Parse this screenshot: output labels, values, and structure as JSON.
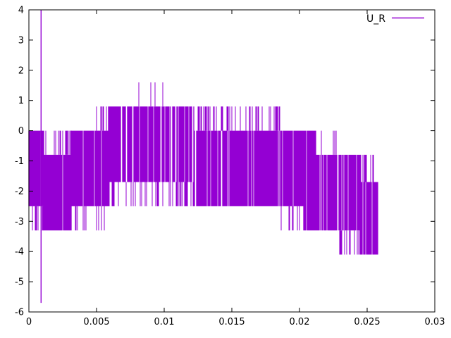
{
  "chart_data": {
    "type": "line",
    "title": "",
    "background_color": "#ffffff",
    "axis_color": "#000000",
    "grid": false,
    "legend": {
      "position": "top-right",
      "entries": [
        {
          "label": "U_R",
          "color": "#9400d3"
        }
      ]
    },
    "x_axis": {
      "range": [
        0,
        0.03
      ],
      "tick_values": [
        0,
        0.005,
        0.01,
        0.015,
        0.02,
        0.025,
        0.03
      ],
      "tick_labels": [
        "0",
        "0.005",
        "0.01",
        "0.015",
        "0.02",
        "0.025",
        "0.03"
      ]
    },
    "y_axis": {
      "range": [
        -6,
        4
      ],
      "tick_values": [
        -6,
        -5,
        -4,
        -3,
        -2,
        -1,
        0,
        1,
        2,
        3,
        4
      ],
      "tick_labels": [
        "-6",
        "-5",
        "-4",
        "-3",
        "-2",
        "-1",
        "0",
        "1",
        "2",
        "3",
        "4"
      ]
    },
    "series": [
      {
        "name": "U_R",
        "color": "#9400d3",
        "signal_levels": [
          1.6,
          0.8,
          0,
          -0.8,
          -1.7,
          -2.5,
          -3.3,
          -4.1
        ],
        "signal_end_x": 0.0258,
        "envelope_segments": [
          {
            "x0": 0.0,
            "x1": 0.0011,
            "hi": 0.0,
            "lo": -2.5,
            "top": null,
            "bot": {
              "level": -3.3,
              "density": 0.35
            },
            "gap": 0.05
          },
          {
            "x0": 0.0011,
            "x1": 0.0019,
            "hi": -0.8,
            "lo": -3.3,
            "top": {
              "level": 0.0,
              "density": 0.08
            },
            "bot": null,
            "gap": 0.05
          },
          {
            "x0": 0.0019,
            "x1": 0.0031,
            "hi": -0.8,
            "lo": -3.3,
            "top": {
              "level": 0.0,
              "density": 0.45
            },
            "bot": null,
            "gap": 0.08
          },
          {
            "x0": 0.0031,
            "x1": 0.005,
            "hi": 0.0,
            "lo": -2.5,
            "top": {
              "level": 0.8,
              "density": 0.05
            },
            "bot": {
              "level": -3.3,
              "density": 0.2
            },
            "gap": 0.1
          },
          {
            "x0": 0.005,
            "x1": 0.0059,
            "hi": 0.0,
            "lo": -2.5,
            "top": {
              "level": 0.8,
              "density": 0.3
            },
            "bot": {
              "level": -3.3,
              "density": 0.12
            },
            "gap": 0.12
          },
          {
            "x0": 0.0059,
            "x1": 0.0103,
            "hi": 0.8,
            "lo": -1.7,
            "top": null,
            "bot": {
              "level": -2.5,
              "density": 0.25
            },
            "gap": 0.09
          },
          {
            "x0": 0.0103,
            "x1": 0.0122,
            "hi": 0.8,
            "lo": -1.7,
            "top": null,
            "bot": {
              "level": -2.5,
              "density": 0.5
            },
            "gap": 0.25
          },
          {
            "x0": 0.0122,
            "x1": 0.0186,
            "hi": 0.0,
            "lo": -2.5,
            "top": {
              "level": 0.8,
              "density": 0.4
            },
            "bot": null,
            "gap": 0.1
          },
          {
            "x0": 0.0186,
            "x1": 0.0203,
            "hi": 0.0,
            "lo": -2.5,
            "top": {
              "level": 0.8,
              "density": 0.15
            },
            "bot": {
              "level": -3.3,
              "density": 0.25
            },
            "gap": 0.1
          },
          {
            "x0": 0.0203,
            "x1": 0.0212,
            "hi": 0.0,
            "lo": -3.3,
            "top": null,
            "bot": null,
            "gap": 0.06
          },
          {
            "x0": 0.0212,
            "x1": 0.0229,
            "hi": -0.8,
            "lo": -3.3,
            "top": {
              "level": 0.0,
              "density": 0.08
            },
            "bot": null,
            "gap": 0.15
          },
          {
            "x0": 0.0229,
            "x1": 0.0245,
            "hi": -0.8,
            "lo": -3.3,
            "top": null,
            "bot": {
              "level": -4.1,
              "density": 0.3
            },
            "gap": 0.12
          },
          {
            "x0": 0.0245,
            "x1": 0.0258,
            "hi": -1.7,
            "lo": -4.1,
            "top": {
              "level": -0.8,
              "density": 0.3
            },
            "bot": null,
            "gap": 0.08
          }
        ],
        "transient_spike": {
          "x": 0.0009,
          "top": 4.0,
          "bottom": -5.7
        },
        "peak_spikes": {
          "base_level": 0.8,
          "level": 1.6,
          "x_positions": [
            0.0081,
            0.009,
            0.0093,
            0.0099
          ]
        }
      }
    ]
  }
}
